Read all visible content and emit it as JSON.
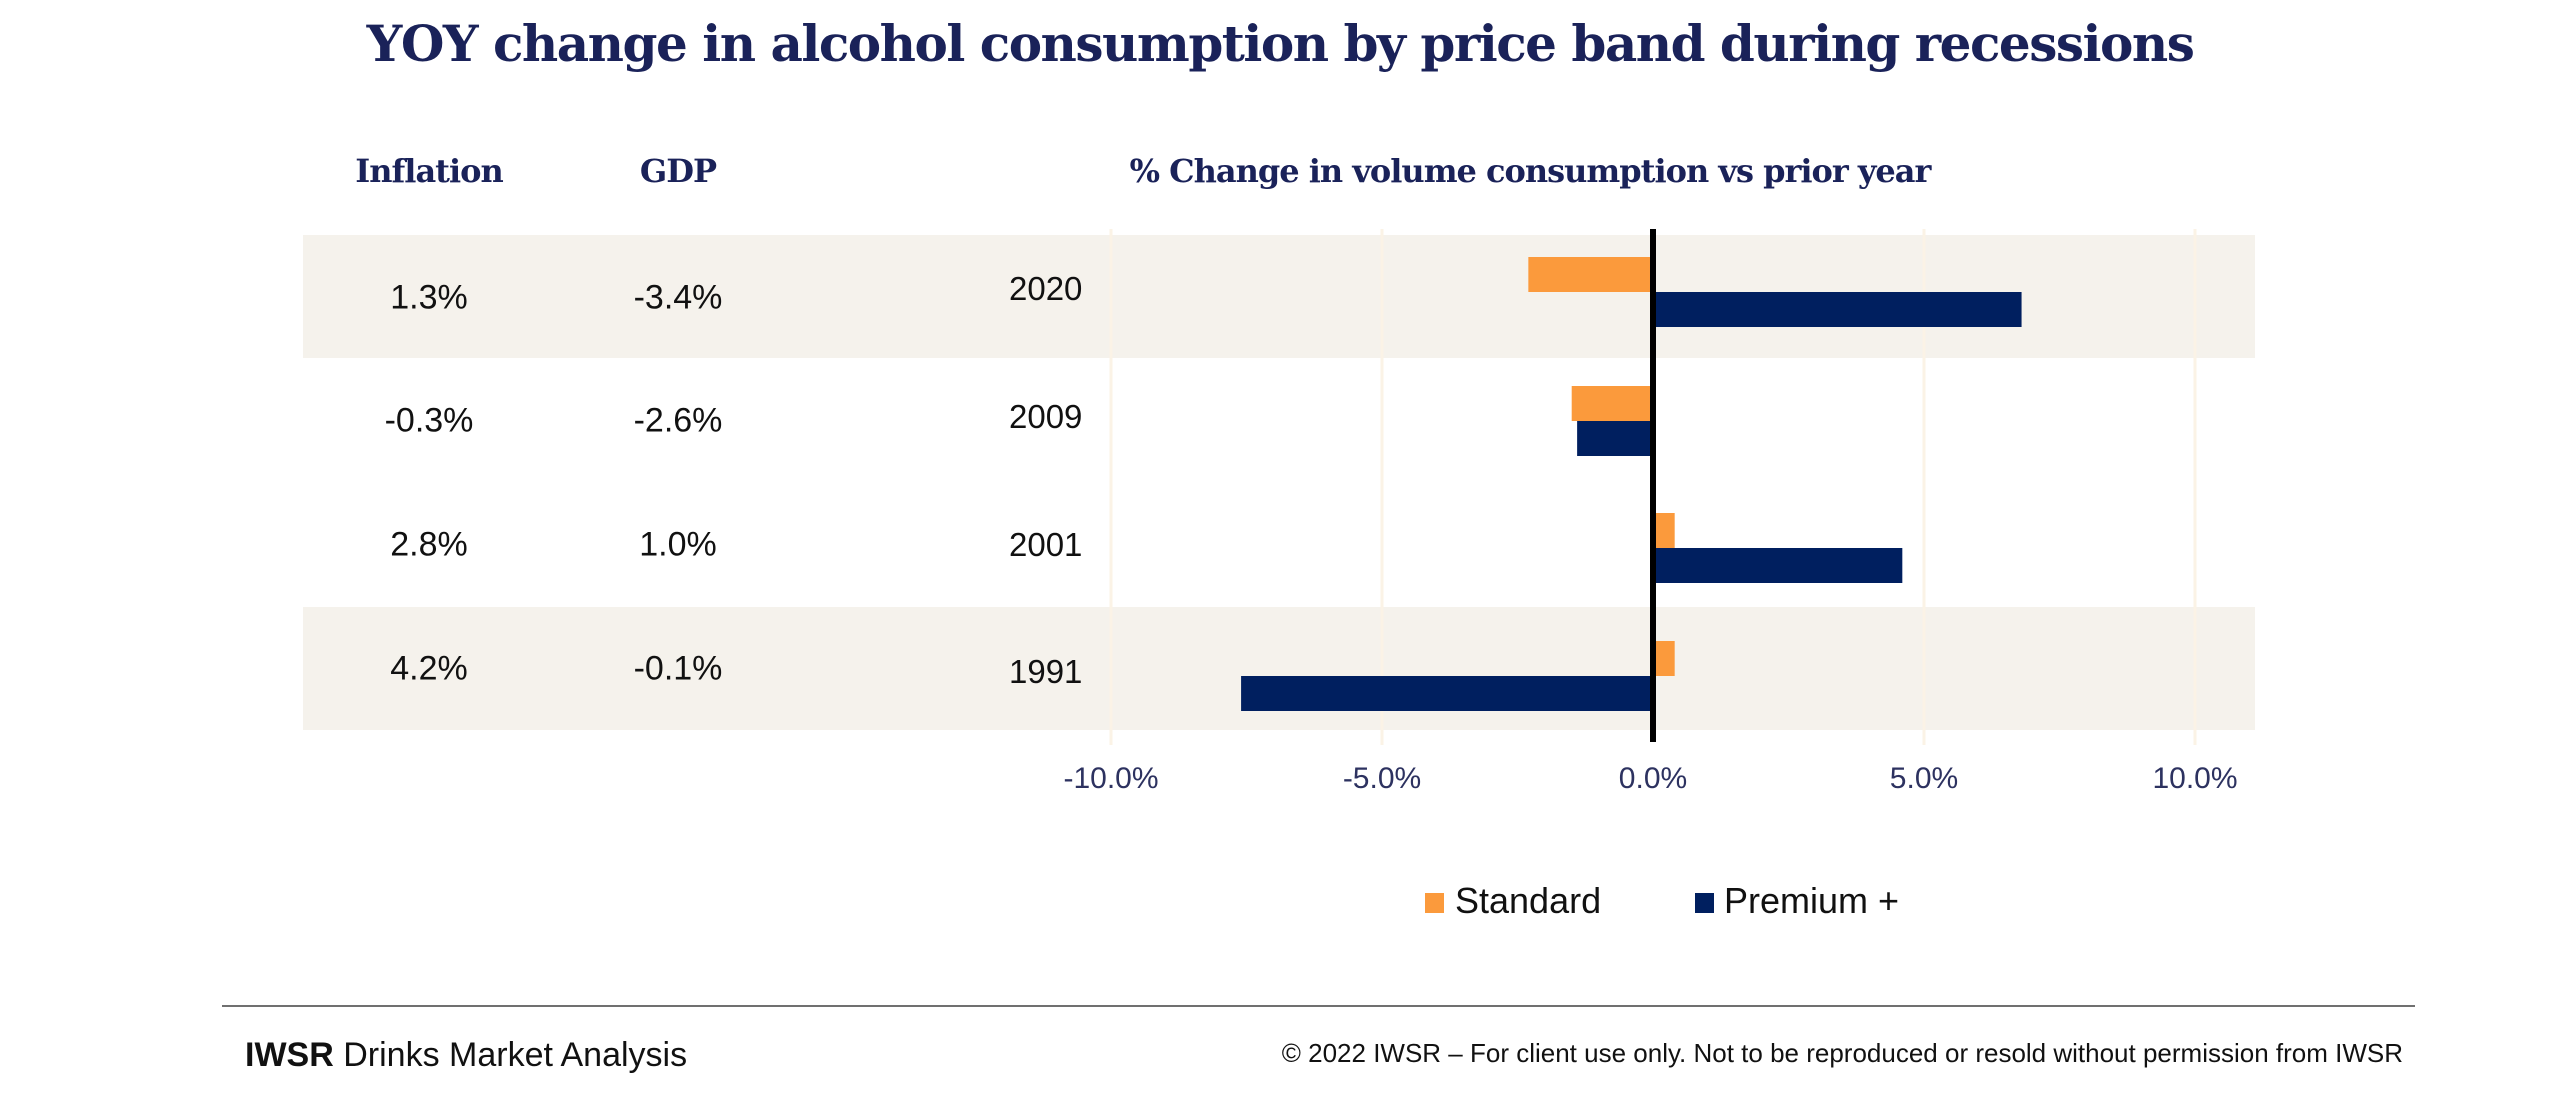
{
  "colors": {
    "standard": "#fb9a3c",
    "premium": "#001f5f",
    "title": "#1a2259",
    "band": "#f5f2ec",
    "gridline": "#fbf3e6",
    "zero_line": "#000000"
  },
  "table": {
    "headers": {
      "inflation": "Inflation",
      "gdp": "GDP"
    },
    "rows": [
      {
        "year": "2020",
        "inflation": "1.3%",
        "gdp": "-3.4%"
      },
      {
        "year": "2009",
        "inflation": "-0.3%",
        "gdp": "-2.6%"
      },
      {
        "year": "2001",
        "inflation": "2.8%",
        "gdp": "1.0%"
      },
      {
        "year": "1991",
        "inflation": "4.2%",
        "gdp": "-0.1%"
      }
    ]
  },
  "footer": {
    "brand_bold": "IWSR",
    "brand_rest": " Drinks Market Analysis",
    "copyright": "© 2022 IWSR – For client use only. Not to be reproduced or resold without permission from IWSR"
  },
  "chart_data": {
    "type": "bar",
    "orientation": "horizontal",
    "title": "YOY change in alcohol consumption by price band during recessions",
    "subtitle": "% Change in volume consumption vs prior year",
    "xlabel": "",
    "ylabel": "",
    "categories": [
      "2020",
      "2009",
      "2001",
      "1991"
    ],
    "series": [
      {
        "name": "Standard",
        "color": "#fb9a3c",
        "values": [
          -2.3,
          -1.5,
          0.4,
          0.4
        ]
      },
      {
        "name": "Premium +",
        "color": "#001f5f",
        "values": [
          6.8,
          -1.4,
          4.6,
          -7.6
        ]
      }
    ],
    "xlim": [
      -10,
      10
    ],
    "xticks": [
      -10,
      -5,
      0,
      5,
      10
    ],
    "xtick_labels": [
      "-10.0%",
      "-5.0%",
      "0.0%",
      "5.0%",
      "10.0%"
    ],
    "grid": true,
    "legend": {
      "position": "bottom-center",
      "entries": [
        "Standard",
        "Premium +"
      ]
    }
  }
}
